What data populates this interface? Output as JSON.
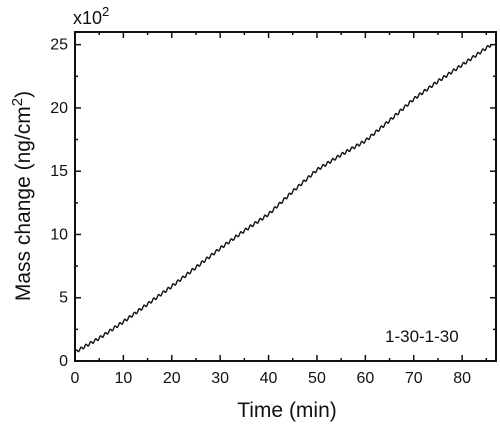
{
  "chart_data": {
    "type": "line",
    "xlabel": "Time (min)",
    "ylabel_main": "Mass change (ng/cm",
    "ylabel_sup": "2",
    "ylabel_end": ")",
    "y_multiplier_base": "x10",
    "y_multiplier_exp": "2",
    "annotation": "1-30-1-30",
    "xlim": [
      0,
      87
    ],
    "ylim": [
      0,
      26
    ],
    "x_ticks": [
      0,
      10,
      20,
      30,
      40,
      50,
      60,
      70,
      80
    ],
    "y_ticks": [
      0,
      5,
      10,
      15,
      20,
      25
    ],
    "x_tick_labels": [
      "0",
      "10",
      "20",
      "30",
      "40",
      "50",
      "60",
      "70",
      "80"
    ],
    "y_tick_labels": [
      "0",
      "5",
      "10",
      "15",
      "20",
      "25"
    ],
    "grid": false,
    "series": [
      {
        "x": [
          0,
          5,
          10,
          15,
          20,
          25,
          30,
          35,
          40,
          45,
          50,
          55,
          60,
          65,
          70,
          75,
          80,
          86
        ],
        "y": [
          0.7,
          1.8,
          3.1,
          4.5,
          5.9,
          7.4,
          8.9,
          10.3,
          11.6,
          13.4,
          15.1,
          16.3,
          17.4,
          19.0,
          20.7,
          22.1,
          23.4,
          25.0
        ],
        "color": "#111111"
      }
    ]
  }
}
